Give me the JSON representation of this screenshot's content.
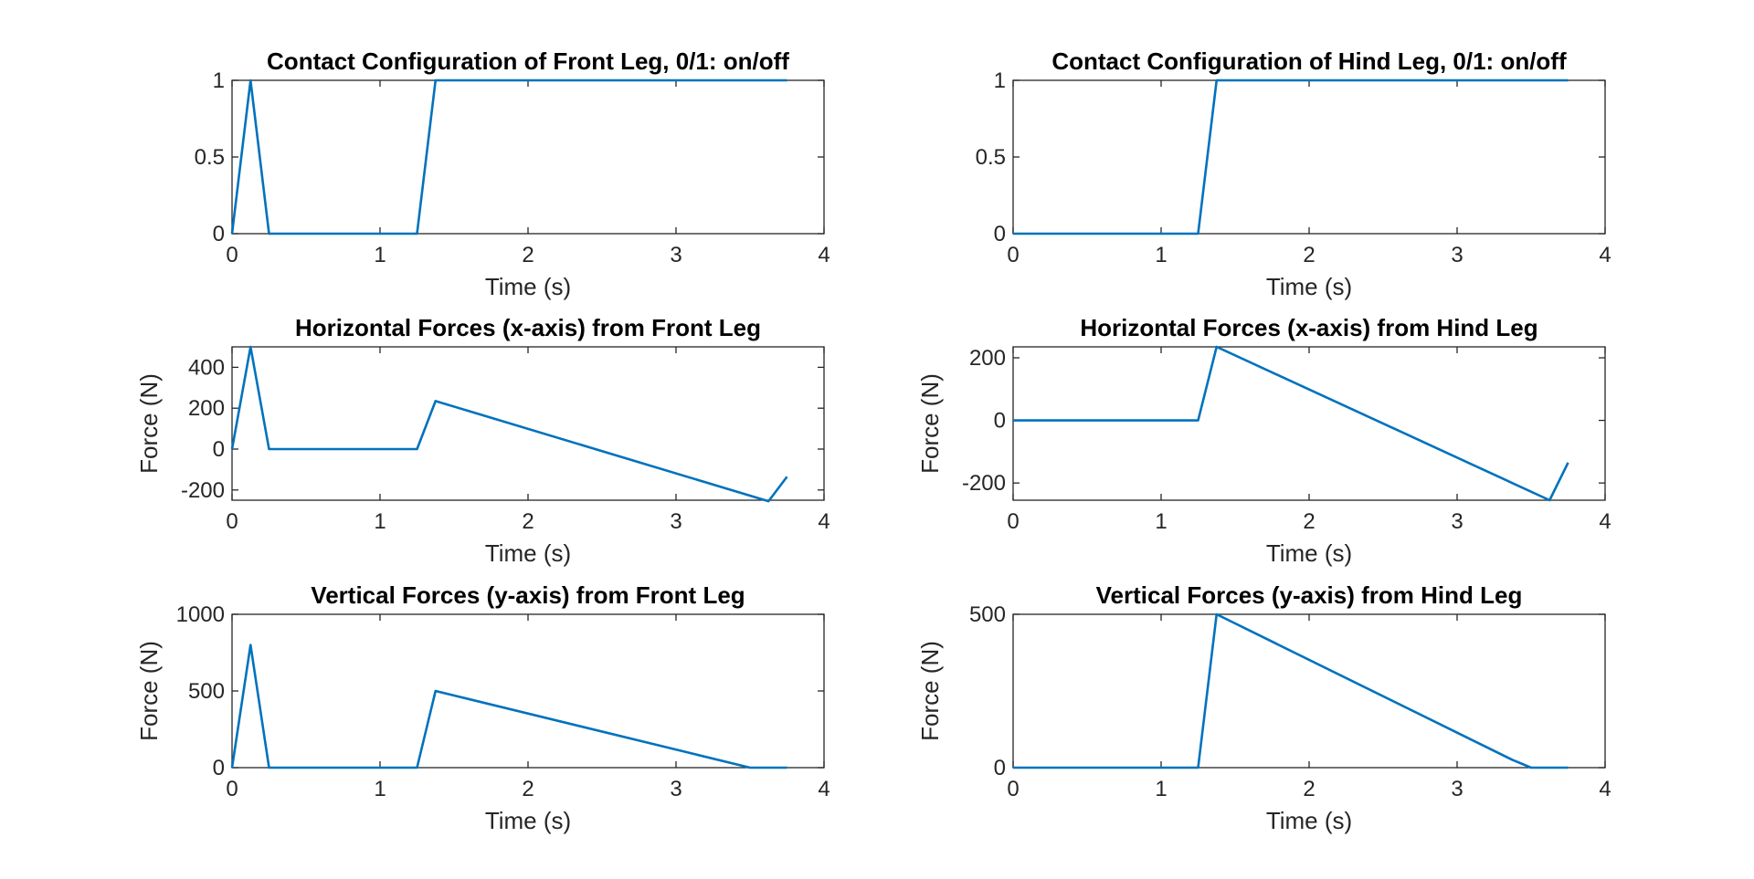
{
  "figure": {
    "background": "#ffffff",
    "line_color": "#0072BD"
  },
  "chart_data": [
    {
      "type": "line",
      "title": "Contact Configuration of Front Leg, 0/1: on/off",
      "xlabel": "Time (s)",
      "ylabel": "",
      "xlim": [
        0,
        4
      ],
      "ylim": [
        0,
        1
      ],
      "xticks": [
        0,
        1,
        2,
        3,
        4
      ],
      "yticks": [
        0,
        0.5,
        1
      ],
      "xtick_labels": [
        "0",
        "1",
        "2",
        "3",
        "4"
      ],
      "ytick_labels": [
        "0",
        "0.5",
        "1"
      ],
      "grid": false,
      "series": [
        {
          "x": [
            0,
            0.125,
            0.25,
            1.25,
            1.375,
            3.75
          ],
          "y": [
            0,
            1,
            0,
            0,
            1,
            1
          ]
        }
      ]
    },
    {
      "type": "line",
      "title": "Contact Configuration of Hind Leg, 0/1: on/off",
      "xlabel": "Time (s)",
      "ylabel": "",
      "xlim": [
        0,
        4
      ],
      "ylim": [
        0,
        1
      ],
      "xticks": [
        0,
        1,
        2,
        3,
        4
      ],
      "yticks": [
        0,
        0.5,
        1
      ],
      "xtick_labels": [
        "0",
        "1",
        "2",
        "3",
        "4"
      ],
      "ytick_labels": [
        "0",
        "0.5",
        "1"
      ],
      "grid": false,
      "series": [
        {
          "x": [
            0,
            1.25,
            1.375,
            3.75
          ],
          "y": [
            0,
            0,
            1,
            1
          ]
        }
      ]
    },
    {
      "type": "line",
      "title": "Horizontal Forces (x-axis) from Front Leg",
      "xlabel": "Time (s)",
      "ylabel": "Force (N)",
      "xlim": [
        0,
        4
      ],
      "ylim": [
        -250,
        500
      ],
      "xticks": [
        0,
        1,
        2,
        3,
        4
      ],
      "yticks": [
        -200,
        0,
        200,
        400
      ],
      "xtick_labels": [
        "0",
        "1",
        "2",
        "3",
        "4"
      ],
      "ytick_labels": [
        "-200",
        "0",
        "200",
        "400"
      ],
      "grid": false,
      "series": [
        {
          "x": [
            0,
            0.125,
            0.25,
            1.25,
            1.375,
            3.625,
            3.75
          ],
          "y": [
            0,
            500,
            0,
            0,
            235,
            -255,
            -135
          ]
        }
      ]
    },
    {
      "type": "line",
      "title": "Horizontal Forces (x-axis) from Hind Leg",
      "xlabel": "Time (s)",
      "ylabel": "Force (N)",
      "xlim": [
        0,
        4
      ],
      "ylim": [
        -255,
        235
      ],
      "xticks": [
        0,
        1,
        2,
        3,
        4
      ],
      "yticks": [
        -200,
        0,
        200
      ],
      "xtick_labels": [
        "0",
        "1",
        "2",
        "3",
        "4"
      ],
      "ytick_labels": [
        "-200",
        "0",
        "200"
      ],
      "grid": false,
      "series": [
        {
          "x": [
            0,
            1.25,
            1.375,
            3.625,
            3.75
          ],
          "y": [
            0,
            0,
            235,
            -255,
            -135
          ]
        }
      ]
    },
    {
      "type": "line",
      "title": "Vertical Forces (y-axis) from Front Leg",
      "xlabel": "Time (s)",
      "ylabel": "Force (N)",
      "xlim": [
        0,
        4
      ],
      "ylim": [
        0,
        1000
      ],
      "xticks": [
        0,
        1,
        2,
        3,
        4
      ],
      "yticks": [
        0,
        500,
        1000
      ],
      "xtick_labels": [
        "0",
        "1",
        "2",
        "3",
        "4"
      ],
      "ytick_labels": [
        "0",
        "500",
        "1000"
      ],
      "grid": false,
      "series": [
        {
          "x": [
            0,
            0.125,
            0.25,
            1.25,
            1.375,
            3.5,
            3.75
          ],
          "y": [
            0,
            800,
            0,
            0,
            500,
            0,
            0
          ]
        }
      ]
    },
    {
      "type": "line",
      "title": "Vertical Forces (y-axis) from Hind Leg",
      "xlabel": "Time (s)",
      "ylabel": "Force (N)",
      "xlim": [
        0,
        4
      ],
      "ylim": [
        0,
        500
      ],
      "xticks": [
        0,
        1,
        2,
        3,
        4
      ],
      "yticks": [
        0,
        500
      ],
      "xtick_labels": [
        "0",
        "1",
        "2",
        "3",
        "4"
      ],
      "ytick_labels": [
        "0",
        "500"
      ],
      "grid": false,
      "series": [
        {
          "x": [
            0,
            1.25,
            1.375,
            3.375,
            3.5,
            3.75
          ],
          "y": [
            0,
            0,
            500,
            25,
            0,
            0
          ]
        }
      ]
    }
  ]
}
